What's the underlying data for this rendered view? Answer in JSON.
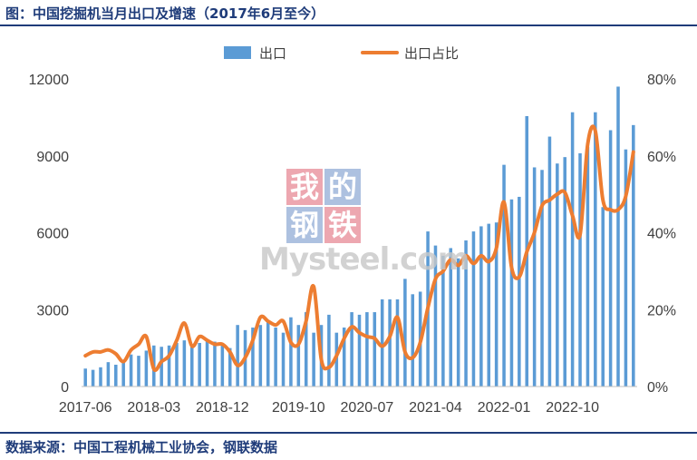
{
  "header": {
    "title": "图：中国挖掘机当月出口及增速（2017年6月至今）"
  },
  "footer": {
    "source": "数据来源：中国工程机械工业协会，钢联数据"
  },
  "watermark": {
    "chars": [
      "我",
      "的",
      "钢",
      "铁"
    ],
    "text": "Mysteel.com"
  },
  "colors": {
    "bar": "#5b9bd5",
    "line": "#ed7d31",
    "accent": "#1f3c7a",
    "axis": "#bfbfbf"
  },
  "chart_data": {
    "type": "bar",
    "left_axis": {
      "range": [
        0,
        12000
      ],
      "ticks": [
        "0",
        "3000",
        "6000",
        "9000",
        "12000"
      ]
    },
    "right_axis": {
      "range": [
        0,
        80
      ],
      "ticks": [
        "0%",
        "20%",
        "40%",
        "60%",
        "80%"
      ]
    },
    "x_tick_labels": [
      "2017-06",
      "2018-03",
      "2018-12",
      "2019-10",
      "2020-07",
      "2021-04",
      "2022-01",
      "2022-10"
    ],
    "x_tick_positions": [
      0,
      9,
      18,
      28,
      37,
      46,
      55,
      64
    ],
    "legend": {
      "bar_label": "出口",
      "line_label": "出口占比",
      "placement": "top"
    },
    "series": [
      {
        "name": "出口",
        "type": "bar",
        "axis": "left",
        "values": [
          700,
          650,
          750,
          950,
          850,
          1000,
          1250,
          1200,
          1400,
          1600,
          1550,
          1600,
          1700,
          1800,
          1650,
          1700,
          1800,
          1750,
          1600,
          1500,
          2400,
          2200,
          2300,
          2400,
          2500,
          2300,
          2100,
          2700,
          2400,
          2900,
          2100,
          2400,
          2800,
          2100,
          2300,
          2900,
          2800,
          2900,
          2900,
          3400,
          3400,
          3400,
          4200,
          3600,
          3700,
          6050,
          5500,
          5100,
          5400,
          5000,
          5700,
          6050,
          6250,
          6350,
          6400,
          8650,
          7300,
          7400,
          10550,
          8550,
          8450,
          9750,
          8700,
          8950,
          10700,
          9100,
          9350,
          10700,
          7000,
          10000,
          11700,
          9250,
          10200
        ]
      },
      {
        "name": "出口占比",
        "type": "line",
        "axis": "right",
        "values": [
          8,
          9,
          9,
          9.5,
          8.5,
          6.5,
          9.5,
          11,
          13,
          4.5,
          6.5,
          8,
          12,
          16.5,
          10.5,
          13,
          12,
          11,
          11,
          9,
          5.5,
          7.5,
          12,
          18,
          17,
          16,
          17,
          11.5,
          11,
          17,
          26,
          7,
          5,
          8,
          12.5,
          15.5,
          14,
          13,
          12.5,
          10.5,
          13,
          18,
          9,
          7.5,
          11.5,
          20.5,
          28,
          30,
          33,
          31.5,
          34,
          32,
          34,
          32.5,
          36,
          48,
          31,
          28.5,
          35,
          40,
          47,
          48.5,
          50,
          50.5,
          44.5,
          39.5,
          63,
          66.5,
          48.5,
          46,
          46,
          49.5,
          61
        ]
      }
    ]
  }
}
